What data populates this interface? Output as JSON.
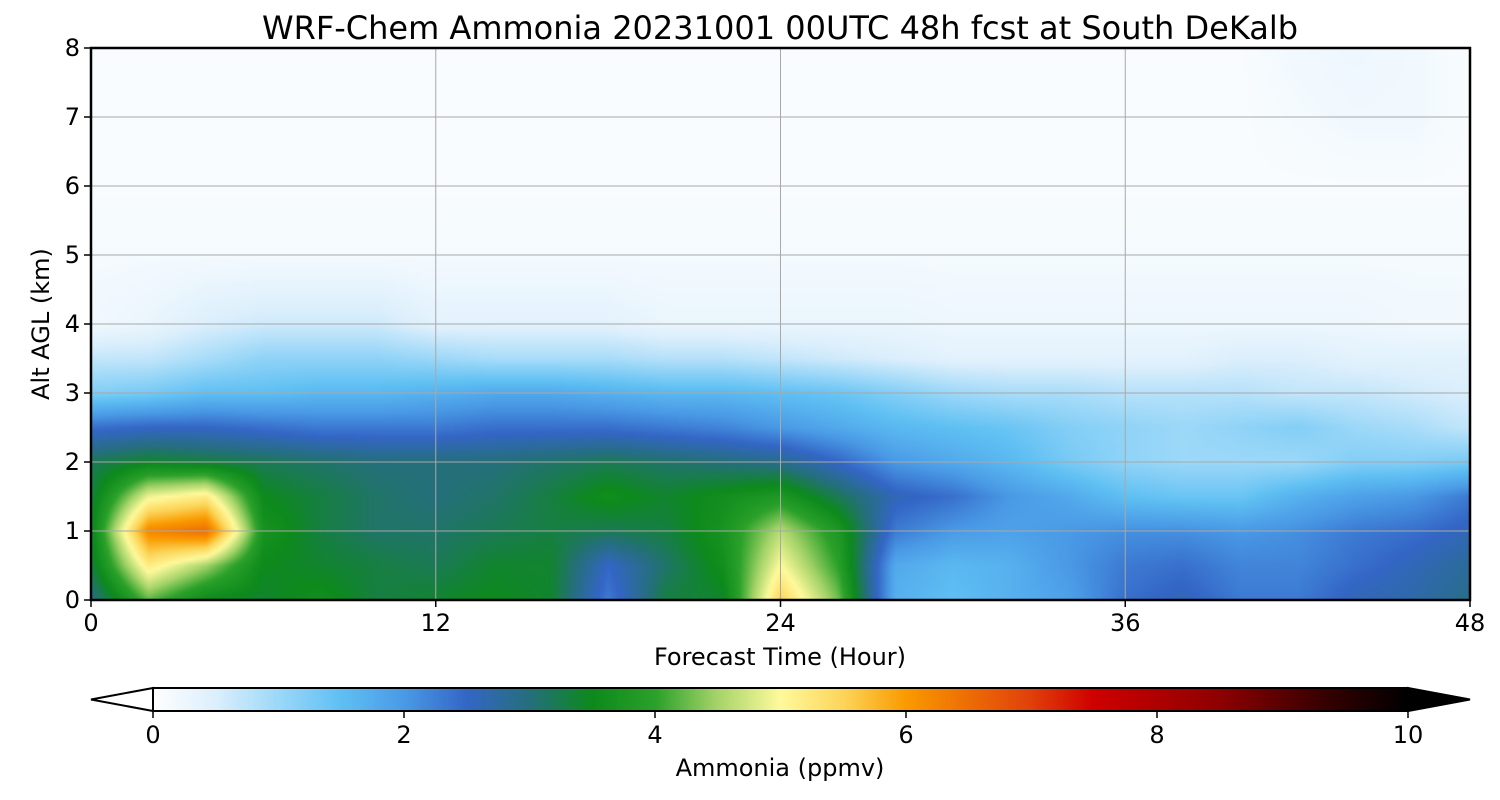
{
  "chart_data": {
    "type": "heatmap",
    "title": "WRF-Chem Ammonia  20231001 00UTC 48h fcst at South DeKalb",
    "xlabel": "Forecast Time (Hour)",
    "ylabel": "Alt AGL (km)",
    "xlim": [
      0,
      48
    ],
    "ylim": [
      0,
      8
    ],
    "xticks": [
      "0",
      "12",
      "24",
      "36",
      "48"
    ],
    "yticks": [
      "0",
      "1",
      "2",
      "3",
      "4",
      "5",
      "6",
      "7",
      "8"
    ],
    "grid": true,
    "colorbar": {
      "label": "Ammonia  (ppmv)",
      "min": 0,
      "max": 10,
      "ticks": [
        "0",
        "2",
        "4",
        "6",
        "8",
        "10"
      ],
      "extend": "both",
      "stops": [
        {
          "v": 0.0,
          "c": "#ffffff"
        },
        {
          "v": 0.5,
          "c": "#dceffc"
        },
        {
          "v": 1.0,
          "c": "#9cd8f8"
        },
        {
          "v": 1.5,
          "c": "#5fc0f3"
        },
        {
          "v": 2.0,
          "c": "#4a9ae6"
        },
        {
          "v": 2.5,
          "c": "#3466c6"
        },
        {
          "v": 3.0,
          "c": "#256f7c"
        },
        {
          "v": 3.5,
          "c": "#0d8a1c"
        },
        {
          "v": 4.0,
          "c": "#2ba12a"
        },
        {
          "v": 4.5,
          "c": "#a6d46a"
        },
        {
          "v": 5.0,
          "c": "#fffa9c"
        },
        {
          "v": 5.5,
          "c": "#fcd55a"
        },
        {
          "v": 6.0,
          "c": "#fa9a00"
        },
        {
          "v": 7.0,
          "c": "#e0400a"
        },
        {
          "v": 7.5,
          "c": "#cf0000"
        },
        {
          "v": 8.5,
          "c": "#8e0000"
        },
        {
          "v": 9.3,
          "c": "#3a0000"
        },
        {
          "v": 10.0,
          "c": "#000000"
        }
      ]
    },
    "x_hours": [
      0,
      2,
      4,
      6,
      8,
      10,
      12,
      14,
      16,
      18,
      20,
      22,
      24,
      26,
      28,
      30,
      32,
      34,
      36,
      38,
      40,
      42,
      44,
      46,
      48
    ],
    "z_km": [
      0,
      0.5,
      1,
      1.5,
      2,
      2.5,
      3,
      3.5,
      4,
      5,
      6,
      7,
      8
    ],
    "values_ppmv": [
      [
        2.9,
        4.2,
        3.5,
        3.4,
        3.6,
        3.3,
        3.4,
        3.5,
        3.4,
        2.3,
        3.3,
        3.4,
        5.5,
        4.3,
        1.7,
        1.5,
        1.7,
        1.9,
        2.4,
        2.6,
        2.3,
        2.3,
        2.6,
        2.7,
        2.9
      ],
      [
        3.3,
        5.2,
        4.5,
        3.5,
        3.4,
        3.3,
        3.2,
        3.4,
        3.4,
        2.5,
        3.1,
        3.6,
        5.0,
        4.0,
        1.8,
        1.6,
        1.7,
        2.0,
        2.3,
        2.4,
        2.2,
        2.2,
        2.4,
        2.6,
        2.8
      ],
      [
        3.4,
        6.2,
        6.5,
        3.7,
        3.3,
        3.1,
        3.1,
        3.2,
        3.3,
        3.2,
        3.3,
        3.7,
        4.6,
        3.8,
        2.3,
        2.0,
        1.9,
        2.0,
        2.1,
        2.1,
        2.0,
        2.1,
        2.3,
        2.4,
        2.6
      ],
      [
        3.3,
        4.9,
        5.2,
        3.5,
        3.3,
        3.1,
        3.0,
        3.1,
        3.3,
        3.6,
        3.4,
        3.6,
        3.8,
        3.2,
        2.6,
        2.4,
        2.0,
        1.8,
        1.5,
        1.4,
        1.4,
        1.7,
        1.9,
        2.0,
        2.3
      ],
      [
        3.2,
        3.4,
        3.3,
        3.2,
        3.1,
        3.0,
        3.0,
        3.0,
        3.1,
        3.2,
        3.1,
        3.0,
        2.9,
        2.5,
        2.0,
        1.8,
        1.6,
        1.3,
        1.1,
        1.0,
        1.0,
        1.0,
        1.2,
        1.2,
        1.3
      ],
      [
        2.4,
        2.5,
        2.5,
        2.4,
        2.3,
        2.3,
        2.3,
        2.4,
        2.4,
        2.4,
        2.3,
        2.2,
        2.0,
        1.8,
        1.6,
        1.5,
        1.4,
        1.2,
        1.1,
        1.0,
        1.1,
        1.2,
        1.0,
        0.9,
        0.7
      ],
      [
        1.2,
        1.3,
        1.5,
        1.5,
        1.6,
        1.6,
        1.7,
        1.8,
        1.8,
        1.7,
        1.6,
        1.6,
        1.5,
        1.4,
        1.2,
        1.0,
        0.9,
        0.9,
        0.8,
        0.8,
        0.8,
        0.7,
        0.7,
        0.6,
        0.5
      ],
      [
        0.7,
        0.7,
        0.9,
        1.1,
        1.1,
        1.1,
        1.0,
        0.9,
        0.9,
        0.9,
        0.8,
        0.8,
        0.7,
        0.6,
        0.5,
        0.4,
        0.4,
        0.4,
        0.4,
        0.4,
        0.5,
        0.5,
        0.4,
        0.4,
        0.4
      ],
      [
        0.2,
        0.3,
        0.5,
        0.6,
        0.6,
        0.6,
        0.4,
        0.4,
        0.4,
        0.4,
        0.3,
        0.3,
        0.3,
        0.3,
        0.3,
        0.25,
        0.25,
        0.25,
        0.25,
        0.25,
        0.25,
        0.25,
        0.25,
        0.2,
        0.2
      ],
      [
        0.15,
        0.15,
        0.15,
        0.15,
        0.15,
        0.15,
        0.15,
        0.15,
        0.15,
        0.15,
        0.15,
        0.15,
        0.15,
        0.15,
        0.15,
        0.15,
        0.15,
        0.15,
        0.15,
        0.15,
        0.15,
        0.15,
        0.15,
        0.15,
        0.15
      ],
      [
        0.1,
        0.1,
        0.1,
        0.1,
        0.1,
        0.1,
        0.1,
        0.1,
        0.1,
        0.1,
        0.1,
        0.1,
        0.1,
        0.1,
        0.1,
        0.1,
        0.1,
        0.1,
        0.1,
        0.1,
        0.1,
        0.1,
        0.1,
        0.1,
        0.1
      ],
      [
        0.1,
        0.1,
        0.1,
        0.1,
        0.1,
        0.1,
        0.1,
        0.1,
        0.1,
        0.1,
        0.1,
        0.1,
        0.1,
        0.1,
        0.1,
        0.1,
        0.1,
        0.1,
        0.1,
        0.1,
        0.1,
        0.15,
        0.2,
        0.2,
        0.1
      ],
      [
        0.1,
        0.1,
        0.1,
        0.1,
        0.1,
        0.1,
        0.1,
        0.1,
        0.1,
        0.1,
        0.1,
        0.1,
        0.1,
        0.1,
        0.1,
        0.1,
        0.1,
        0.1,
        0.1,
        0.1,
        0.1,
        0.2,
        0.25,
        0.2,
        0.1
      ]
    ]
  }
}
